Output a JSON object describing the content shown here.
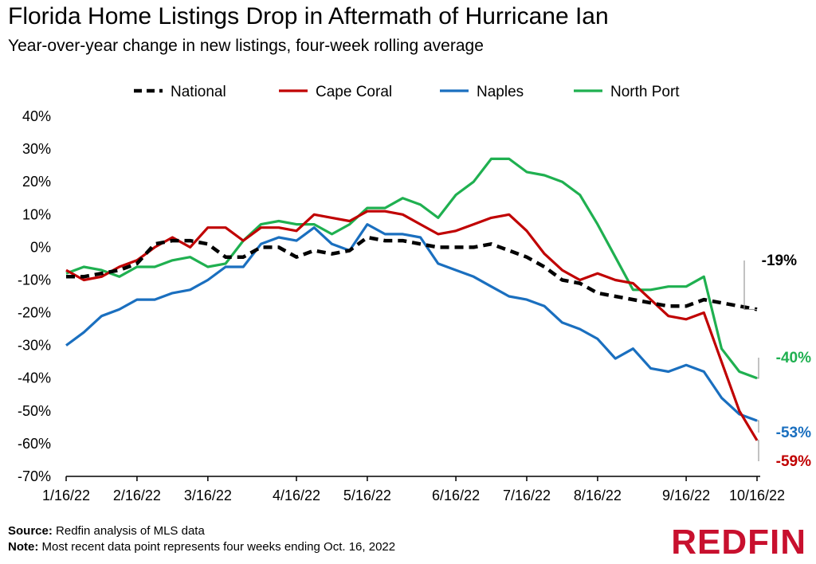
{
  "header": {
    "title": "Florida Home Listings Drop in Aftermath of Hurricane Ian",
    "subtitle": "Year-over-year change in new listings, four-week rolling average"
  },
  "footer": {
    "source_label": "Source:",
    "source_text": "Redfin analysis of MLS data",
    "note_label": "Note:",
    "note_text": "Most recent data point represents four weeks ending Oct. 16, 2022",
    "logo_text": "REDFIN"
  },
  "chart_data": {
    "type": "line",
    "title": "Florida Home Listings Drop in Aftermath of Hurricane Ian",
    "subtitle": "Year-over-year change in new listings, four-week rolling average",
    "xlabel": "",
    "ylabel": "",
    "ylim": [
      -70,
      40
    ],
    "y_ticks": [
      "40%",
      "30%",
      "20%",
      "10%",
      "0%",
      "-10%",
      "-20%",
      "-30%",
      "-40%",
      "-50%",
      "-60%",
      "-70%"
    ],
    "y_tick_values": [
      40,
      30,
      20,
      10,
      0,
      -10,
      -20,
      -30,
      -40,
      -50,
      -60,
      -70
    ],
    "x_ticks": [
      "1/16/22",
      "2/16/22",
      "3/16/22",
      "4/16/22",
      "5/16/22",
      "6/16/22",
      "7/16/22",
      "8/16/22",
      "9/16/22",
      "10/16/22"
    ],
    "x_tick_index": [
      0,
      4,
      8,
      13,
      17,
      22,
      26,
      30,
      35,
      39
    ],
    "n_points": 40,
    "grid": false,
    "legend_position": "top",
    "series": [
      {
        "name": "National",
        "color": "#000000",
        "style": "dashed",
        "end_label": "-19%",
        "values": [
          -9,
          -9,
          -8,
          -7,
          -5,
          1,
          2,
          2,
          1,
          -3,
          -3,
          0,
          0,
          -3,
          -1,
          -2,
          -1,
          3,
          2,
          2,
          1,
          0,
          0,
          0,
          1,
          -1,
          -3,
          -6,
          -10,
          -11,
          -14,
          -15,
          -16,
          -17,
          -18,
          -18,
          -16,
          -17,
          -18,
          -19
        ]
      },
      {
        "name": "Cape Coral",
        "color": "#c00000",
        "style": "solid",
        "end_label": "-59%",
        "values": [
          -7,
          -10,
          -9,
          -6,
          -4,
          0,
          3,
          0,
          6,
          6,
          2,
          6,
          6,
          5,
          10,
          9,
          8,
          11,
          11,
          10,
          7,
          4,
          5,
          7,
          9,
          10,
          5,
          -2,
          -7,
          -10,
          -8,
          -10,
          -11,
          -16,
          -21,
          -22,
          -20,
          -35,
          -50,
          -59
        ]
      },
      {
        "name": "Naples",
        "color": "#1a6fbf",
        "style": "solid",
        "end_label": "-53%",
        "values": [
          -30,
          -26,
          -21,
          -19,
          -16,
          -16,
          -14,
          -13,
          -10,
          -6,
          -6,
          1,
          3,
          2,
          6,
          1,
          -1,
          7,
          4,
          4,
          3,
          -5,
          -7,
          -9,
          -12,
          -15,
          -16,
          -18,
          -23,
          -25,
          -28,
          -34,
          -31,
          -37,
          -38,
          -36,
          -38,
          -46,
          -51,
          -53
        ]
      },
      {
        "name": "North Port",
        "color": "#1fb050",
        "style": "solid",
        "end_label": "-40%",
        "values": [
          -8,
          -6,
          -7,
          -9,
          -6,
          -6,
          -4,
          -3,
          -6,
          -5,
          2,
          7,
          8,
          7,
          7,
          4,
          7,
          12,
          12,
          15,
          13,
          9,
          16,
          20,
          27,
          27,
          23,
          22,
          20,
          16,
          7,
          -3,
          -13,
          -13,
          -12,
          -12,
          -9,
          -31,
          -38,
          -40
        ]
      }
    ]
  }
}
